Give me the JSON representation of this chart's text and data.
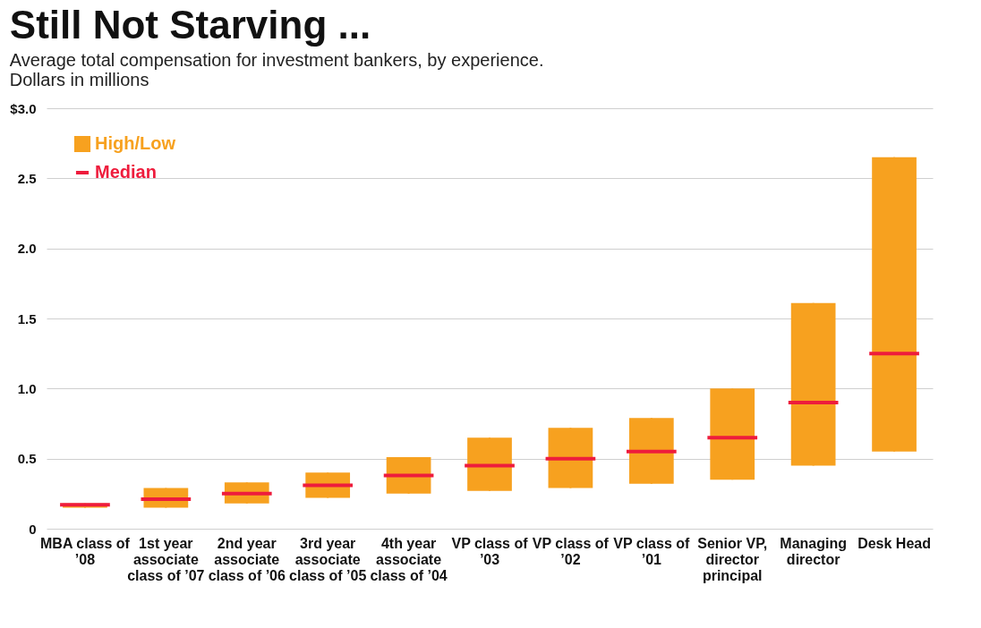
{
  "chart_data": {
    "type": "box",
    "title": "Still Not Starving ...",
    "subtitle": "Average total compensation for investment bankers, by experience.",
    "ylabel": "Dollars in millions",
    "categories": [
      "MBA class of ’08",
      "1st year associate class of ’07",
      "2nd year associate class of ’06",
      "3rd year associate class of ’05",
      "4th year associate class of ’04",
      "VP class of ’03",
      "VP class of ’02",
      "VP class of ’01",
      "Senior VP, director principal",
      "Managing director",
      "Desk Head"
    ],
    "series": [
      {
        "name": "High/Low",
        "color": "#f7a11f",
        "boxes": [
          {
            "low": 0.15,
            "q1": 0.15,
            "median": 0.17,
            "q3": 0.18,
            "high": 0.18
          },
          {
            "low": 0.15,
            "q1": 0.15,
            "median": 0.21,
            "q3": 0.29,
            "high": 0.29
          },
          {
            "low": 0.18,
            "q1": 0.18,
            "median": 0.25,
            "q3": 0.33,
            "high": 0.33
          },
          {
            "low": 0.22,
            "q1": 0.22,
            "median": 0.31,
            "q3": 0.4,
            "high": 0.4
          },
          {
            "low": 0.25,
            "q1": 0.25,
            "median": 0.38,
            "q3": 0.51,
            "high": 0.51
          },
          {
            "low": 0.27,
            "q1": 0.27,
            "median": 0.45,
            "q3": 0.65,
            "high": 0.65
          },
          {
            "low": 0.29,
            "q1": 0.29,
            "median": 0.5,
            "q3": 0.72,
            "high": 0.72
          },
          {
            "low": 0.32,
            "q1": 0.32,
            "median": 0.55,
            "q3": 0.79,
            "high": 0.79
          },
          {
            "low": 0.35,
            "q1": 0.35,
            "median": 0.65,
            "q3": 1.0,
            "high": 1.0
          },
          {
            "low": 0.45,
            "q1": 0.45,
            "median": 0.9,
            "q3": 1.61,
            "high": 1.61
          },
          {
            "low": 0.55,
            "q1": 0.55,
            "median": 1.25,
            "q3": 2.65,
            "high": 2.65
          }
        ]
      }
    ],
    "annotations": [
      "Median"
    ],
    "ylim": [
      0,
      3
    ],
    "yticks": [
      0,
      0.5,
      {
        "value": 1,
        "label": "1.0"
      },
      1.5,
      {
        "value": 2,
        "label": "2.0"
      },
      2.5,
      {
        "value": 3,
        "label": "$3.0"
      }
    ],
    "grid": "y",
    "legend": "top left"
  }
}
